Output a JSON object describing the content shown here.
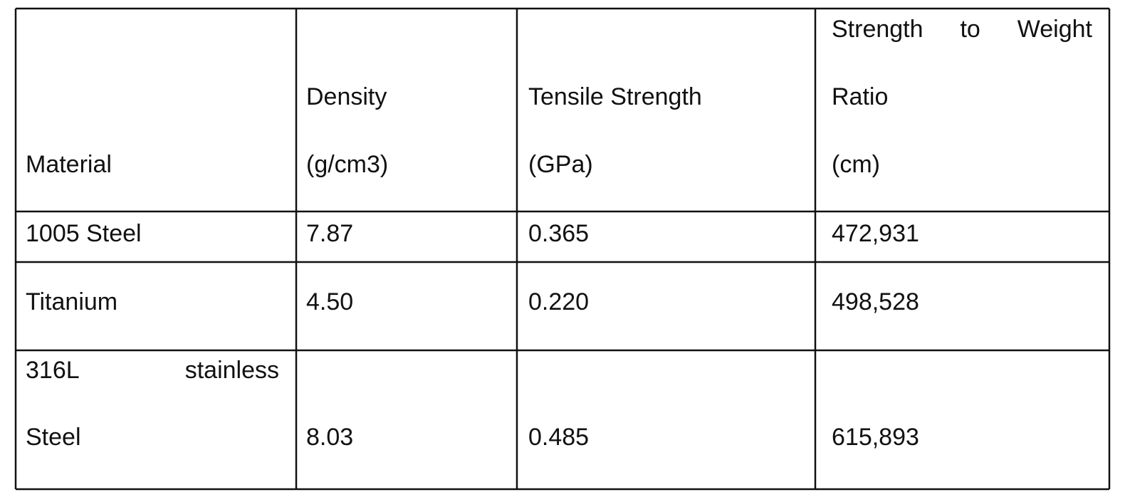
{
  "table": {
    "header": [
      [
        "Material"
      ],
      [
        "Density",
        "(g/cm3)"
      ],
      [
        "Tensile Strength",
        "(GPa)"
      ],
      [
        "Strength to Weight",
        "Ratio",
        "(cm)"
      ]
    ],
    "rows": [
      [
        [
          "1005 Steel"
        ],
        [
          "7.87"
        ],
        [
          "0.365"
        ],
        [
          "472,931"
        ]
      ],
      [
        [
          "Titanium"
        ],
        [
          "4.50"
        ],
        [
          "0.220"
        ],
        [
          "498,528"
        ]
      ],
      [
        [
          "316L stainless",
          "Steel"
        ],
        [
          "8.03"
        ],
        [
          "0.485"
        ],
        [
          "615,893"
        ]
      ]
    ]
  }
}
